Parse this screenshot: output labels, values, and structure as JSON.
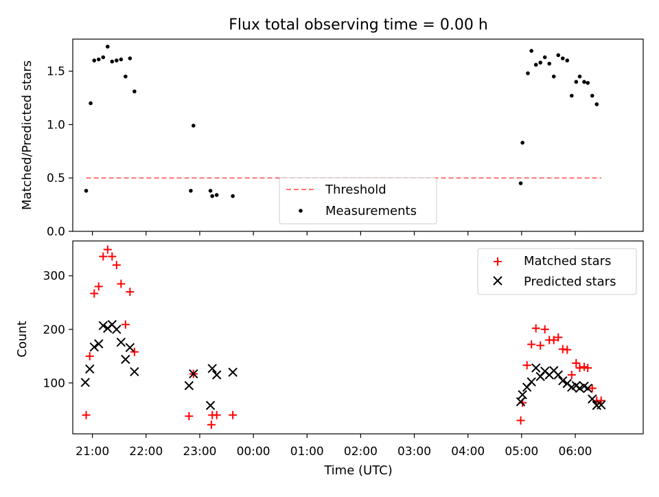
{
  "title": "Flux total observing time = 0.00 h",
  "chart_data": [
    {
      "type": "scatter",
      "ylabel": "Matched/Predicted stars",
      "xlim": [
        "20:38",
        "07:16"
      ],
      "ylim": [
        0,
        1.8
      ],
      "yticks": [
        "0.0",
        "0.5",
        "1.0",
        "1.5"
      ],
      "legend": {
        "placement": "bottom-center",
        "entries": [
          "Threshold",
          "Measurements"
        ]
      },
      "threshold": {
        "name": "Threshold",
        "value": 0.5,
        "x": [
          "20:53",
          "06:29"
        ],
        "color": "#ff7070",
        "style": "dashed"
      },
      "series": [
        {
          "name": "Measurements",
          "color": "#000000",
          "marker": "dot",
          "x": [
            "20:53",
            "20:58",
            "21:02",
            "21:07",
            "21:12",
            "21:17",
            "21:22",
            "21:27",
            "21:32",
            "21:37",
            "21:42",
            "21:47",
            "22:50",
            "22:53",
            "23:12",
            "23:14",
            "23:19",
            "23:37",
            "04:59",
            "05:01",
            "05:07",
            "05:11",
            "05:16",
            "05:21",
            "05:26",
            "05:31",
            "05:36",
            "05:41",
            "05:46",
            "05:51",
            "05:56",
            "06:01",
            "06:05",
            "06:10",
            "06:14",
            "06:19",
            "06:24"
          ],
          "y": [
            0.38,
            1.2,
            1.6,
            1.61,
            1.63,
            1.73,
            1.59,
            1.6,
            1.61,
            1.45,
            1.62,
            1.31,
            0.38,
            0.99,
            0.38,
            0.33,
            0.34,
            0.33,
            0.45,
            0.83,
            1.48,
            1.69,
            1.56,
            1.58,
            1.63,
            1.57,
            1.45,
            1.65,
            1.62,
            1.6,
            1.27,
            1.4,
            1.45,
            1.4,
            1.39,
            1.27,
            1.19
          ]
        }
      ]
    },
    {
      "type": "scatter",
      "xlabel": "Time (UTC)",
      "ylabel": "Count",
      "xlim": [
        "20:38",
        "07:16"
      ],
      "ylim": [
        5,
        365
      ],
      "yticks": [
        "100",
        "200",
        "300"
      ],
      "xticks": [
        "21:00",
        "22:00",
        "23:00",
        "00:00",
        "01:00",
        "02:00",
        "03:00",
        "04:00",
        "05:00",
        "06:00"
      ],
      "legend": {
        "placement": "top-right",
        "entries": [
          "Matched stars",
          "Predicted stars"
        ]
      },
      "series": [
        {
          "name": "Matched stars",
          "color": "#ff0000",
          "marker": "plus",
          "x": [
            "20:53",
            "20:57",
            "21:02",
            "21:07",
            "21:12",
            "21:17",
            "21:22",
            "21:27",
            "21:32",
            "21:37",
            "21:42",
            "21:47",
            "22:48",
            "22:53",
            "23:13",
            "23:14",
            "23:19",
            "23:37",
            "04:59",
            "05:01",
            "05:06",
            "05:11",
            "05:16",
            "05:21",
            "05:26",
            "05:31",
            "05:36",
            "05:41",
            "05:46",
            "05:51",
            "05:56",
            "06:01",
            "06:05",
            "06:10",
            "06:14",
            "06:19",
            "06:24",
            "06:29"
          ],
          "y": [
            40,
            150,
            267,
            280,
            336,
            349,
            336,
            320,
            285,
            209,
            270,
            158,
            38,
            117,
            22,
            40,
            40,
            40,
            30,
            63,
            133,
            172,
            202,
            170,
            200,
            180,
            180,
            185,
            163,
            162,
            115,
            137,
            128,
            130,
            128,
            90,
            67,
            67
          ]
        },
        {
          "name": "Predicted stars",
          "color": "#000000",
          "marker": "x",
          "x": [
            "20:52",
            "20:57",
            "21:02",
            "21:07",
            "21:12",
            "21:17",
            "21:22",
            "21:27",
            "21:32",
            "21:37",
            "21:42",
            "21:47",
            "22:48",
            "22:53",
            "23:12",
            "23:14",
            "23:19",
            "23:37",
            "04:59",
            "05:01",
            "05:06",
            "05:11",
            "05:16",
            "05:21",
            "05:26",
            "05:31",
            "05:36",
            "05:41",
            "05:46",
            "05:51",
            "05:56",
            "06:01",
            "06:05",
            "06:10",
            "06:14",
            "06:19",
            "06:24",
            "06:29"
          ],
          "y": [
            101,
            126,
            167,
            173,
            207,
            202,
            209,
            200,
            176,
            144,
            166,
            121,
            95,
            117,
            58,
            127,
            115,
            120,
            65,
            78,
            92,
            102,
            128,
            112,
            122,
            115,
            123,
            115,
            104,
            99,
            92,
            95,
            90,
            94,
            90,
            70,
            58,
            59
          ]
        }
      ]
    }
  ]
}
